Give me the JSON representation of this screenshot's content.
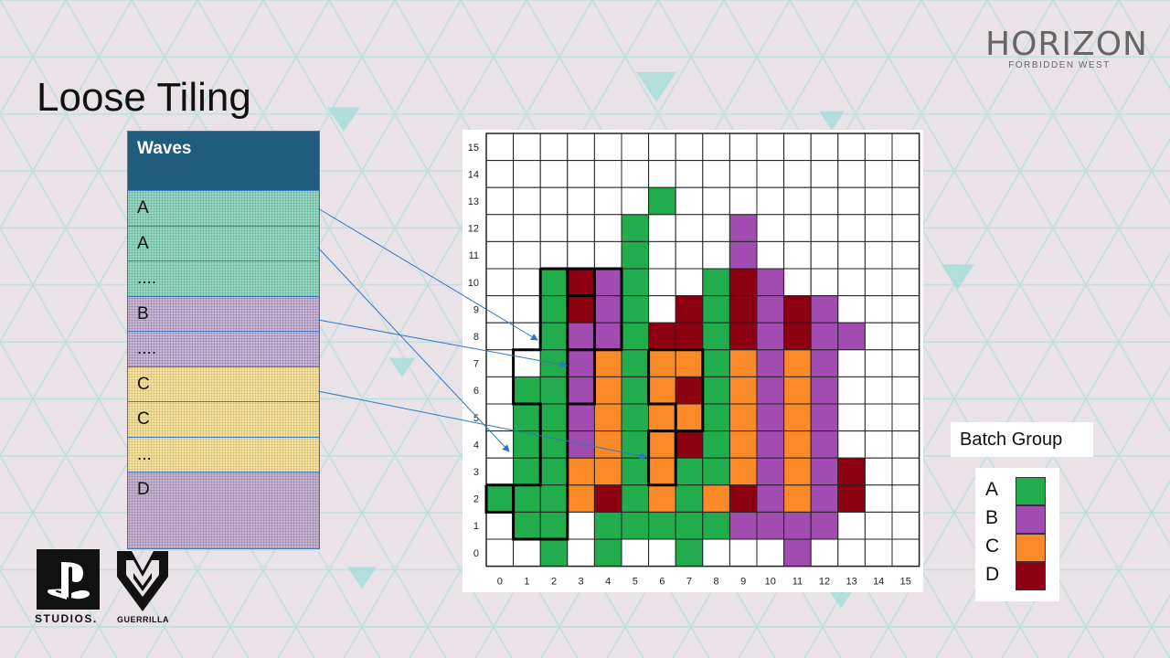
{
  "slide": {
    "title": "Loose Tiling"
  },
  "logo": {
    "main": "HORIZON",
    "sub": "FORBIDDEN WEST"
  },
  "waves": {
    "header": "Waves",
    "rows": [
      {
        "label": "A",
        "group": "A"
      },
      {
        "label": "A",
        "group": "A"
      },
      {
        "label": "....",
        "group": "A"
      },
      {
        "label": "B",
        "group": "B"
      },
      {
        "label": "....",
        "group": "B"
      },
      {
        "label": "C",
        "group": "C"
      },
      {
        "label": "C",
        "group": "C"
      },
      {
        "label": "...",
        "group": "C"
      },
      {
        "label": "D",
        "group": "D"
      }
    ]
  },
  "chart_data": {
    "type": "heatmap",
    "x_ticks": [
      "0",
      "1",
      "2",
      "3",
      "4",
      "5",
      "6",
      "7",
      "8",
      "9",
      "10",
      "11",
      "12",
      "13",
      "14",
      "15"
    ],
    "y_ticks": [
      "0",
      "1",
      "2",
      "3",
      "4",
      "5",
      "6",
      "7",
      "8",
      "9",
      "10",
      "11",
      "12",
      "13",
      "14",
      "15"
    ],
    "colors": {
      "A": "#22ad4c",
      "B": "#a24cb1",
      "C": "#fa8a28",
      "D": "#8c0011",
      "empty": "#ffffff"
    },
    "grid_rows_top_to_bottom": [
      "................",
      "................",
      "......A.........",
      ".....A...B......",
      ".....A...B......",
      "..ADBA..ADB.....",
      "..ADBA.DADBDB...",
      "..ABBADDADBDBB..",
      "..ABCACCACBCB...",
      ".AABCACDACBCB...",
      ".AABCACCACBCB...",
      ".AABCACDACBCB...",
      ".AACCACAACBCBD..",
      "AAACDACACDBCBD..",
      ".AA.AAAAABBBB...",
      "..A.A..A...B...."
    ]
  },
  "legend": {
    "title": "Batch Group",
    "items": [
      {
        "label": "A",
        "color": "#22ad4c"
      },
      {
        "label": "B",
        "color": "#a24cb1"
      },
      {
        "label": "C",
        "color": "#fa8a28"
      },
      {
        "label": "D",
        "color": "#8c0011"
      }
    ]
  },
  "footer": {
    "studios": "STUDIOS.",
    "guerrilla": "GUERRILLA"
  }
}
